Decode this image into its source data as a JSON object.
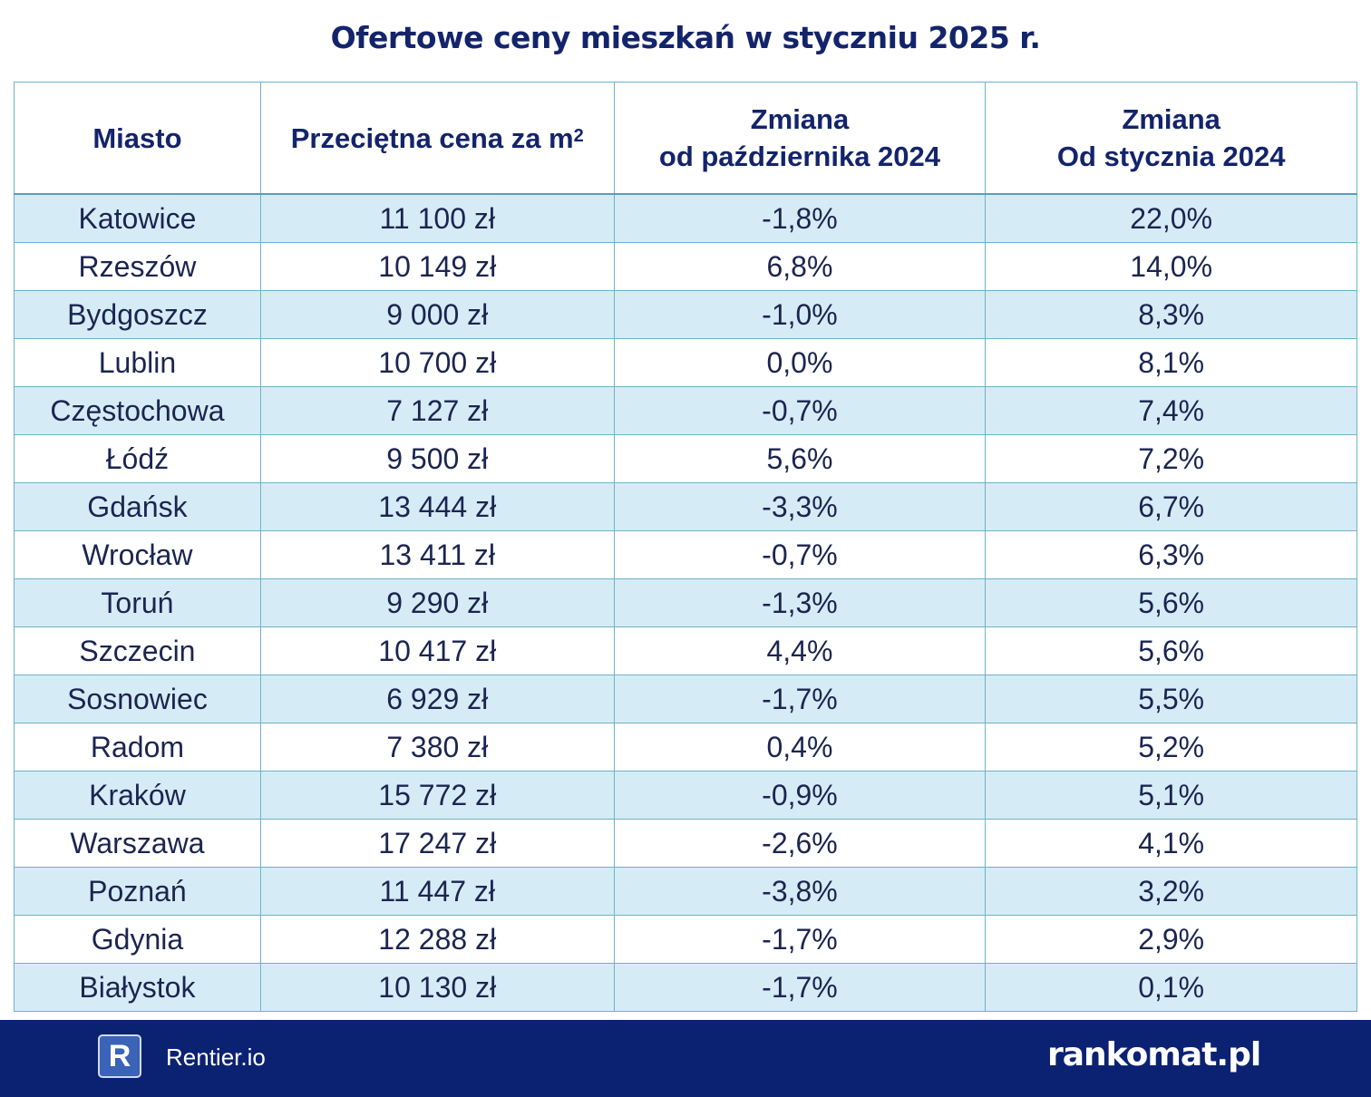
{
  "title": "Ofertowe ceny mieszkań w styczniu 2025 r.",
  "table": {
    "headers": {
      "city": "Miasto",
      "price": "Przeciętna cena za m",
      "price_sup": "2",
      "change_oct_line1": "Zmiana",
      "change_oct_line2": "od października 2024",
      "change_jan_line1": "Zmiana",
      "change_jan_line2": "Od stycznia 2024"
    },
    "rows": [
      [
        "Katowice",
        "11 100 zł",
        "-1,8%",
        "22,0%"
      ],
      [
        "Rzeszów",
        "10 149 zł",
        "6,8%",
        "14,0%"
      ],
      [
        "Bydgoszcz",
        "9 000 zł",
        "-1,0%",
        "8,3%"
      ],
      [
        "Lublin",
        "10 700 zł",
        "0,0%",
        "8,1%"
      ],
      [
        "Częstochowa",
        "7 127 zł",
        "-0,7%",
        "7,4%"
      ],
      [
        "Łódź",
        "9 500 zł",
        "5,6%",
        "7,2%"
      ],
      [
        "Gdańsk",
        "13 444 zł",
        "-3,3%",
        "6,7%"
      ],
      [
        "Wrocław",
        "13 411 zł",
        "-0,7%",
        "6,3%"
      ],
      [
        "Toruń",
        "9 290 zł",
        "-1,3%",
        "5,6%"
      ],
      [
        "Szczecin",
        "10 417 zł",
        "4,4%",
        "5,6%"
      ],
      [
        "Sosnowiec",
        "6 929 zł",
        "-1,7%",
        "5,5%"
      ],
      [
        "Radom",
        "7 380 zł",
        "0,4%",
        "5,2%"
      ],
      [
        "Kraków",
        "15 772 zł",
        "-0,9%",
        "5,1%"
      ],
      [
        "Warszawa",
        "17 247 zł",
        "-2,6%",
        "4,1%"
      ],
      [
        "Poznań",
        "11 447 zł",
        "-3,8%",
        "3,2%"
      ],
      [
        "Gdynia",
        "12 288 zł",
        "-1,7%",
        "2,9%"
      ],
      [
        "Białystok",
        "10 130 zł",
        "-1,7%",
        "0,1%"
      ]
    ]
  },
  "footer": {
    "rentier_logo_letter": "R",
    "rentier_name": "Rentier.io",
    "rankomat_name": "rankomat.pl"
  },
  "colors": {
    "navy": "#0b2273",
    "row_stripe": "#d5ecf7",
    "grid": "#6fb1cc"
  }
}
